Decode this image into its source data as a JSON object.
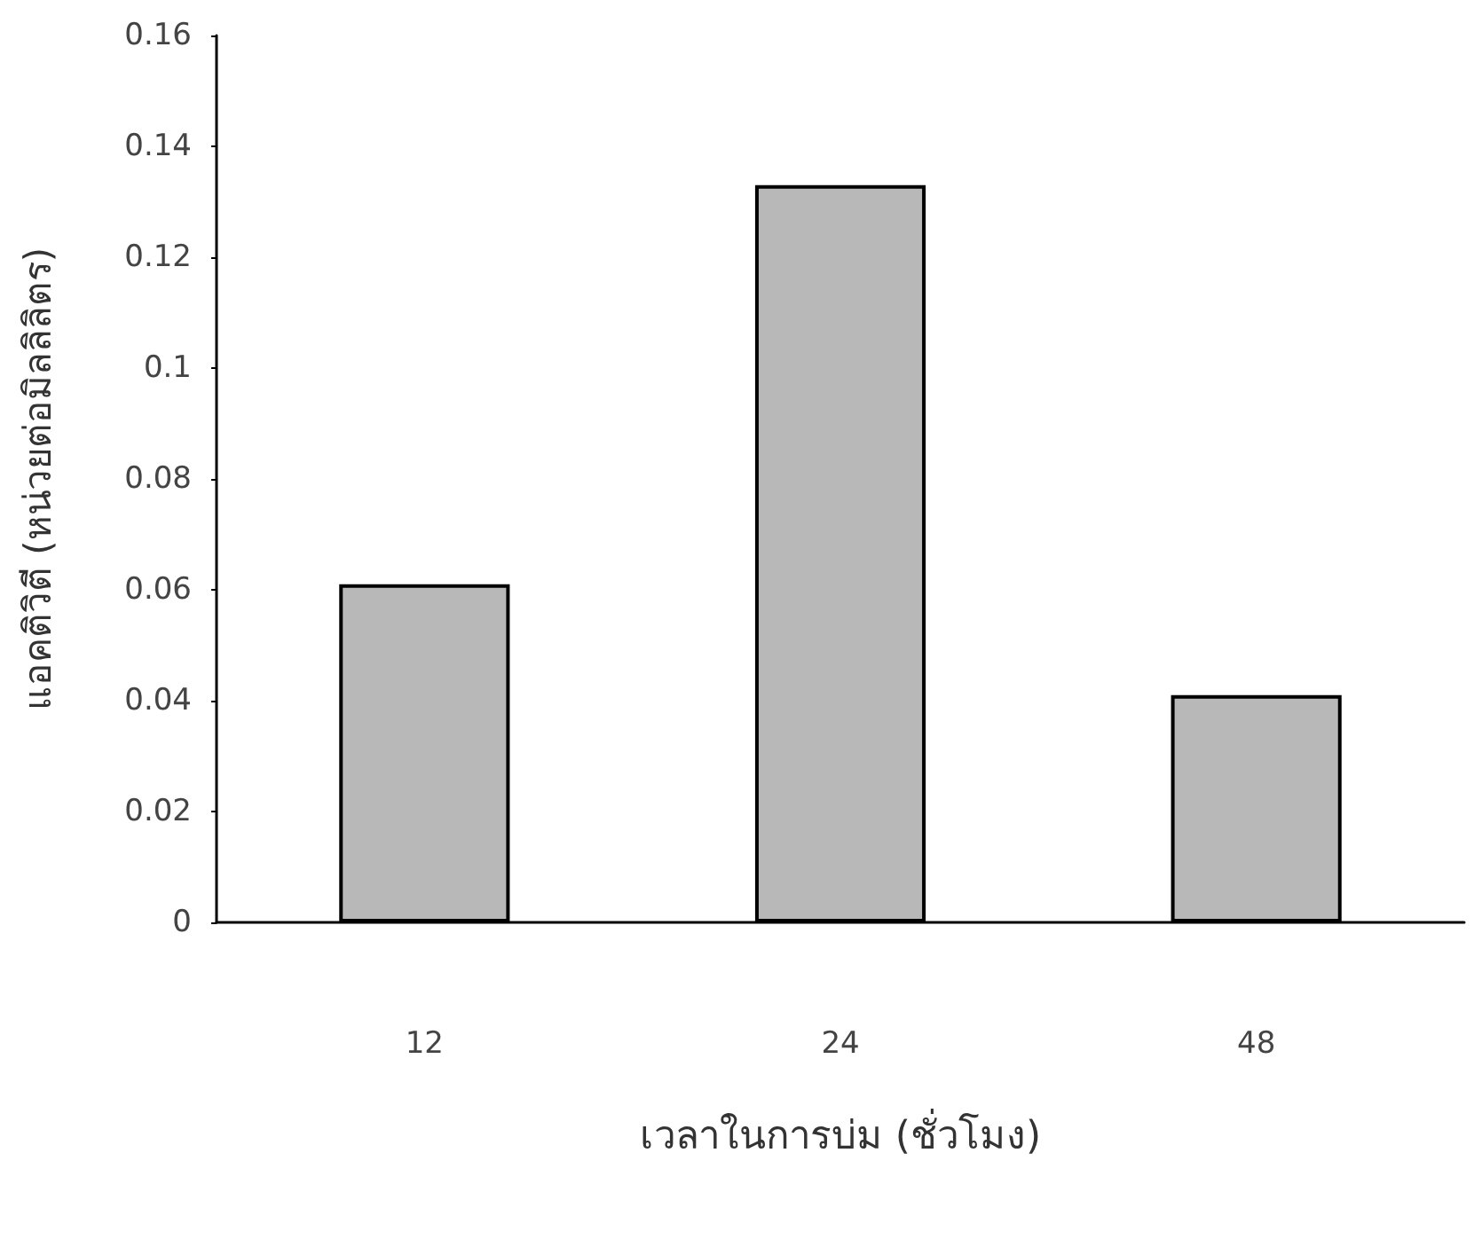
{
  "chart_data": {
    "type": "bar",
    "xlabel": "เวลาในการบ่ม (ชั่วโมง)",
    "ylabel": "แอคติวิตี (หน่วยต่อมิลลิลิตร)",
    "categories": [
      "12",
      "24",
      "48"
    ],
    "values": [
      0.061,
      0.133,
      0.041
    ],
    "color": "#b8b8b8",
    "ylim": [
      0,
      0.16
    ],
    "yticks": [
      0,
      0.02,
      0.04,
      0.06,
      0.08,
      0.1,
      0.12,
      0.14,
      0.16
    ],
    "grid": false
  }
}
